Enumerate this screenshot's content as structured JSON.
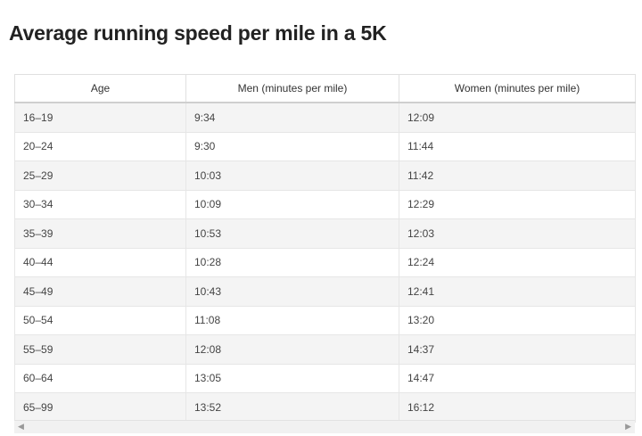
{
  "header": {
    "title": "Average running speed per mile in a 5K"
  },
  "table": {
    "columns": [
      "Age",
      "Men (minutes per mile)",
      "Women (minutes per mile)"
    ],
    "rows": [
      [
        "16–19",
        "9:34",
        "12:09"
      ],
      [
        "20–24",
        "9:30",
        "11:44"
      ],
      [
        "25–29",
        "10:03",
        "11:42"
      ],
      [
        "30–34",
        "10:09",
        "12:29"
      ],
      [
        "35–39",
        "10:53",
        "12:03"
      ],
      [
        "40–44",
        "10:28",
        "12:24"
      ],
      [
        "45–49",
        "10:43",
        "12:41"
      ],
      [
        "50–54",
        "11:08",
        "13:20"
      ],
      [
        "55–59",
        "12:08",
        "14:37"
      ],
      [
        "60–64",
        "13:05",
        "14:47"
      ],
      [
        "65–99",
        "13:52",
        "16:12"
      ]
    ]
  }
}
